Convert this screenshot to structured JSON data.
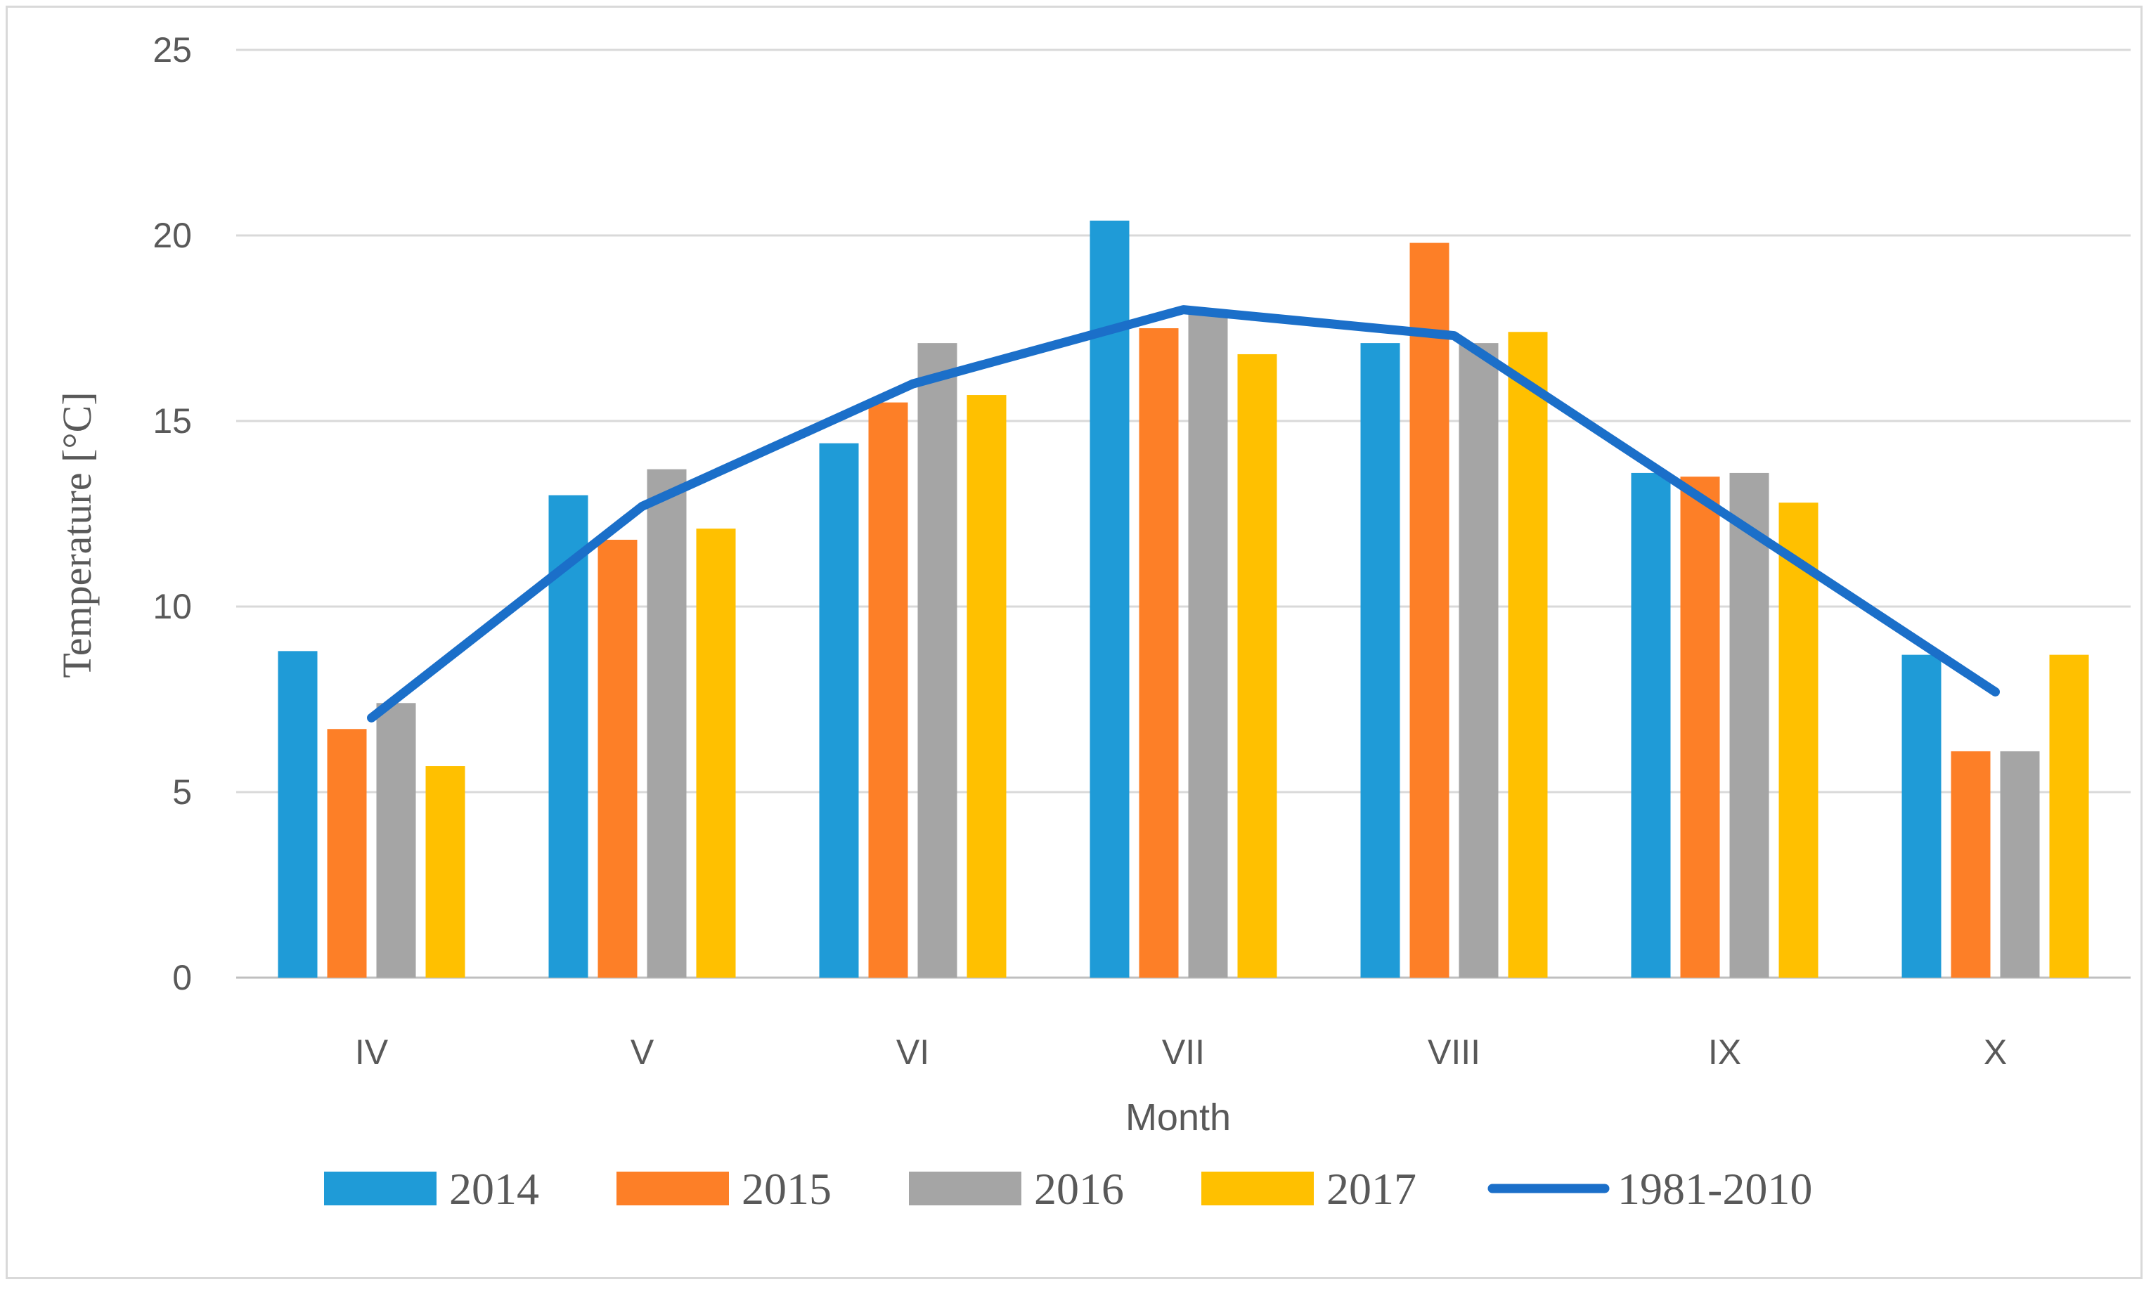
{
  "chart_data": {
    "type": "bar",
    "title": "",
    "xlabel": "Month",
    "ylabel": "Temperature [°C]",
    "ylim": [
      0,
      25
    ],
    "yticks": [
      0,
      5,
      10,
      15,
      20,
      25
    ],
    "grid": true,
    "legend_position": "bottom",
    "categories": [
      "IV",
      "V",
      "VI",
      "VII",
      "VIII",
      "IX",
      "X"
    ],
    "series": [
      {
        "name": "2014",
        "kind": "bar",
        "color": "#1f9bd7",
        "values": [
          8.8,
          13.0,
          14.4,
          20.4,
          17.1,
          13.6,
          8.7
        ]
      },
      {
        "name": "2015",
        "kind": "bar",
        "color": "#fd7f27",
        "values": [
          6.7,
          11.8,
          15.5,
          17.5,
          19.8,
          13.5,
          6.1
        ]
      },
      {
        "name": "2016",
        "kind": "bar",
        "color": "#a5a5a5",
        "values": [
          7.4,
          13.7,
          17.1,
          18.0,
          17.1,
          13.6,
          6.1
        ]
      },
      {
        "name": "2017",
        "kind": "bar",
        "color": "#ffc000",
        "values": [
          5.7,
          12.1,
          15.7,
          16.8,
          17.4,
          12.8,
          8.7
        ]
      },
      {
        "name": "1981-2010",
        "kind": "line",
        "color": "#1b6fc9",
        "values": [
          7.0,
          12.7,
          16.0,
          18.0,
          17.3,
          12.5,
          7.7
        ]
      }
    ]
  }
}
